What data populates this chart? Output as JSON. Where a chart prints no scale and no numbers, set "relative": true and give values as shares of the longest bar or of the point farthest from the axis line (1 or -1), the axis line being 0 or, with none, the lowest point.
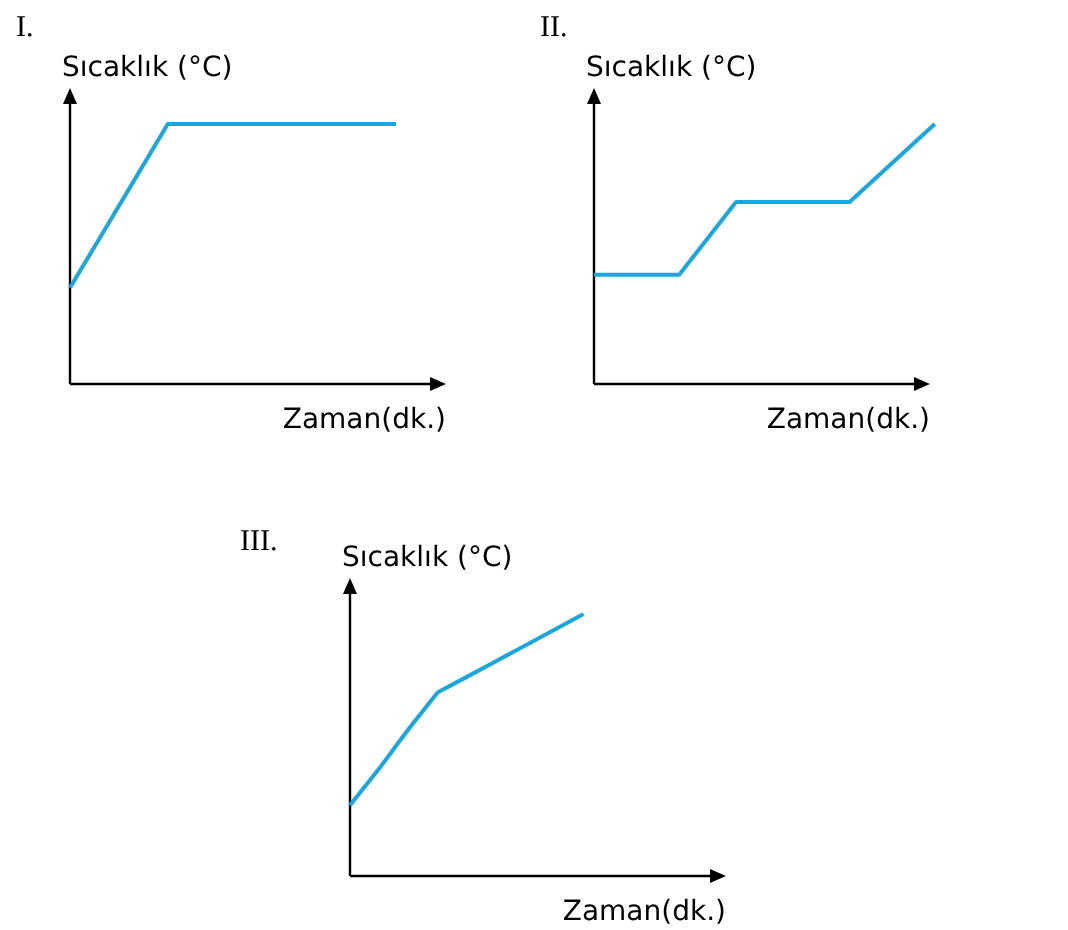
{
  "chart_data": [
    {
      "type": "line",
      "title": "I.",
      "xlabel": "Zaman(dk.)",
      "ylabel": "Sıcaklık (°C)",
      "relative": true,
      "categories": [
        null,
        null,
        null,
        null,
        null,
        null,
        null,
        null,
        null,
        null,
        null
      ],
      "series": [
        {
          "color": "#1aa7e0",
          "values": [
            0.37,
            0.58,
            0.79,
            1,
            1,
            1,
            1,
            1,
            1,
            1,
            1
          ]
        }
      ]
    },
    {
      "type": "line",
      "title": "II.",
      "xlabel": "Zaman(dk.)",
      "ylabel": "Sıcaklık (°C)",
      "relative": true,
      "categories": [
        null,
        null,
        null,
        null,
        null,
        null,
        null,
        null,
        null,
        null,
        null,
        null,
        null
      ],
      "series": [
        {
          "color": "#1aa7e0",
          "values": [
            0.42,
            0.42,
            0.42,
            0.42,
            0.56,
            0.7,
            0.7,
            0.7,
            0.7,
            0.7,
            0.8,
            0.9,
            1
          ]
        }
      ]
    },
    {
      "type": "line",
      "title": "III.",
      "xlabel": "Zaman(dk.)",
      "ylabel": "Sıcaklık (°C)",
      "relative": true,
      "categories": [
        null,
        null,
        null,
        null,
        null,
        null,
        null,
        null,
        null
      ],
      "series": [
        {
          "color": "#1aa7e0",
          "values": [
            0.27,
            0.41,
            0.56,
            0.7,
            0.76,
            0.82,
            0.88,
            0.94,
            1
          ]
        }
      ]
    }
  ]
}
